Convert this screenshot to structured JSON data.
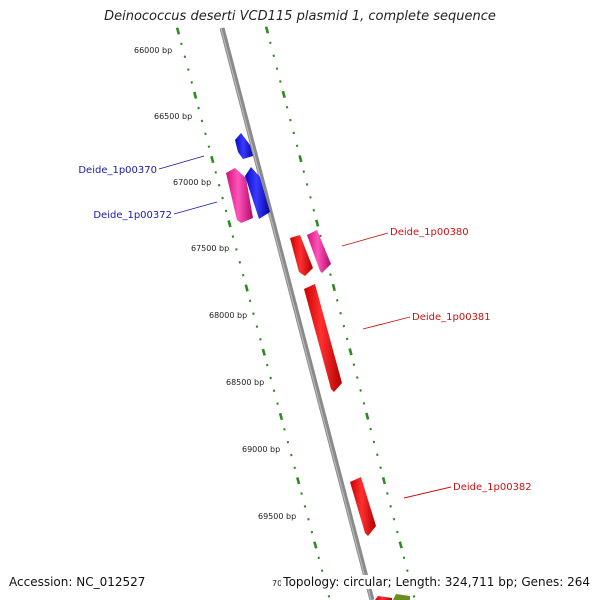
{
  "title": "Deinococcus deserti VCD115 plasmid 1, complete sequence",
  "footer": {
    "accession": "Accession: NC_012527",
    "topology": "Topology: circular; Length: 324,711 bp; Genes: 264"
  },
  "ticks": [
    "66000 bp",
    "66500 bp",
    "67000 bp",
    "67500 bp",
    "68000 bp",
    "68500 bp",
    "69000 bp",
    "69500 bp",
    "70"
  ],
  "genes": {
    "left": [
      "Deide_1p00370",
      "Deide_1p00372"
    ],
    "right": [
      "Deide_1p00380",
      "Deide_1p00381",
      "Deide_1p00382"
    ]
  },
  "colors": {
    "backbone": "#808080",
    "tick_green": "#2e8b22",
    "gene_blue": "#1010e0",
    "gene_red": "#ee1111",
    "gene_pink": "#ee2299",
    "label_blue": "#1a1aa6",
    "label_red": "#cc1111",
    "olive": "#6b8e23"
  }
}
